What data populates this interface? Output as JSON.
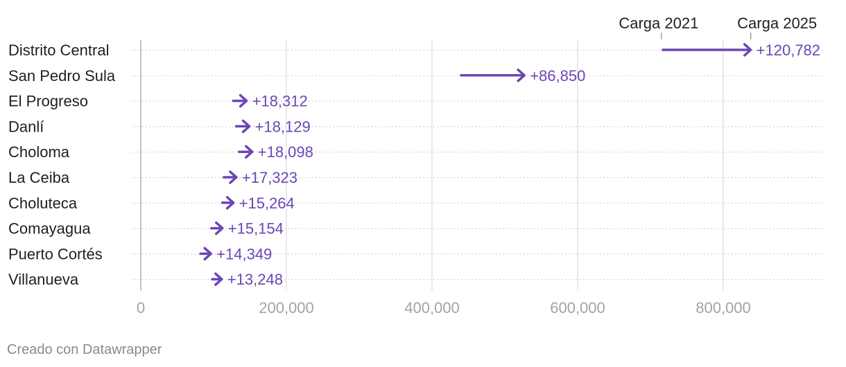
{
  "chart_data": {
    "type": "arrow",
    "start_label": "Carga 2021",
    "end_label": "Carga 2025",
    "xlim": [
      0,
      940000
    ],
    "xticks": [
      0,
      200000,
      400000,
      600000,
      800000
    ],
    "xtick_labels": [
      "0",
      "200,000",
      "400,000",
      "600,000",
      "800,000"
    ],
    "grid": true,
    "rows": [
      {
        "name": "Distrito Central",
        "start": 717000,
        "end": 837782,
        "change_label": "+120,782"
      },
      {
        "name": "San Pedro Sula",
        "start": 440000,
        "end": 526850,
        "change_label": "+86,850"
      },
      {
        "name": "El Progreso",
        "start": 127000,
        "end": 145312,
        "change_label": "+18,312"
      },
      {
        "name": "Danlí",
        "start": 131000,
        "end": 149129,
        "change_label": "+18,129"
      },
      {
        "name": "Choloma",
        "start": 135000,
        "end": 153098,
        "change_label": "+18,098"
      },
      {
        "name": "La Ceiba",
        "start": 114000,
        "end": 131323,
        "change_label": "+17,323"
      },
      {
        "name": "Choluteca",
        "start": 112000,
        "end": 127264,
        "change_label": "+15,264"
      },
      {
        "name": "Comayagua",
        "start": 97000,
        "end": 112154,
        "change_label": "+15,154"
      },
      {
        "name": "Puerto Cortés",
        "start": 82000,
        "end": 96349,
        "change_label": "+14,349"
      },
      {
        "name": "Villanueva",
        "start": 98000,
        "end": 111248,
        "change_label": "+13,248"
      }
    ]
  },
  "colors": {
    "arrow": "#6b46b5",
    "value_text": "#6b46b5",
    "grid": "#e2e2e2",
    "row_grid": "#d4d4d4",
    "baseline": "#c4c4c4",
    "label_text": "#1f1f1f",
    "tick_text": "#a3a3a3",
    "credit_text": "#8a8a8a"
  },
  "credit": "Creado con Datawrapper"
}
